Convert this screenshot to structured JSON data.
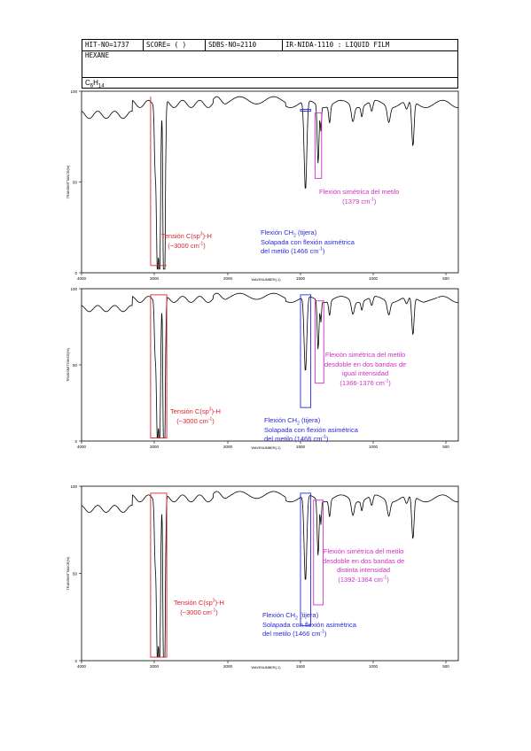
{
  "header": {
    "hit_no": "HIT-NO=1737",
    "score": "SCORE=  (  )",
    "sdbs_no": "SDBS-NO=2110",
    "ir_code": "IR-NIDA-1110 : LIQUID FILM",
    "compound": "HEXANE",
    "formula_main": "C",
    "formula_sub1": "6",
    "formula_mid": "H",
    "formula_sub2": "14"
  },
  "colors": {
    "red": "#e0202a",
    "blue": "#2a2ad8",
    "magenta": "#d030c8",
    "trace": "#000000"
  },
  "chart_data": [
    {
      "type": "line",
      "x_ticks": [
        "4000",
        "3000",
        "2000",
        "1500",
        "1000",
        "500"
      ],
      "x_tick_values": [
        4000,
        3000,
        2000,
        1500,
        1000,
        500
      ],
      "y_ticks": [
        "100",
        "50",
        "0"
      ],
      "ylim": [
        0,
        100
      ],
      "xlim": [
        4000,
        400
      ],
      "xlabel": "WAVENUMBER(-1)",
      "ylabel": "TRANSMITTANCE(%)",
      "annotations": {
        "red": {
          "line1": "Tensión C(sp",
          "sup": "3",
          "line1b": ")-H",
          "line2": "(~3000 cm",
          "line2sup": "-1",
          "line2b": ")"
        },
        "blue": {
          "line1": "Flexión CH",
          "sub": "2",
          "line1b": " (tijera)",
          "line2": "Solapada con flexión asimétrica",
          "line3": "del metilo (1466 cm",
          "line3sup": "-1",
          "line3b": ")"
        },
        "magenta": {
          "line1": "Flexión simétrica del metilo",
          "line2": "(1379 cm",
          "line2sup": "-1",
          "line2b": ")"
        }
      }
    },
    {
      "type": "line",
      "x_ticks": [
        "4000",
        "3000",
        "2000",
        "1500",
        "1000",
        "500"
      ],
      "x_tick_values": [
        4000,
        3000,
        2000,
        1500,
        1000,
        500
      ],
      "y_ticks": [
        "100",
        "50",
        "0"
      ],
      "ylim": [
        0,
        100
      ],
      "xlim": [
        4000,
        400
      ],
      "xlabel": "WAVENUMBER(-1)",
      "ylabel": "TRANSMITTANCE(%)",
      "annotations": {
        "red": {
          "line1": "Tensión C(sp",
          "sup": "3",
          "line1b": ")-H",
          "line2": "(~3000 cm",
          "line2sup": "-1",
          "line2b": ")"
        },
        "blue": {
          "line1": "Flexión CH",
          "sub": "2",
          "line1b": " (tijera)",
          "line2": "Solapada con flexión asimétrica",
          "line3": "del metilo (1466 cm",
          "line3sup": "-1",
          "line3b": ")"
        },
        "magenta": {
          "line1": "Flexión simétrica del metilo",
          "line2": "desdoble en dos bandas de",
          "line3": "igual intensidad",
          "line4": "(1366-1376 cm",
          "line4sup": "-1",
          "line4b": ")"
        }
      }
    },
    {
      "type": "line",
      "x_ticks": [
        "4000",
        "3000",
        "2000",
        "1500",
        "1000",
        "500"
      ],
      "x_tick_values": [
        4000,
        3000,
        2000,
        1500,
        1000,
        500
      ],
      "y_ticks": [
        "100",
        "50",
        "0"
      ],
      "ylim": [
        0,
        100
      ],
      "xlim": [
        4000,
        400
      ],
      "xlabel": "WAVENUMBER(-1)",
      "ylabel": "TRANSMITTANCE(%)",
      "annotations": {
        "red": {
          "line1": "Tensión C(sp",
          "sup": "3",
          "line1b": ")-H",
          "line2": "(~3000 cm",
          "line2sup": "-1",
          "line2b": ")"
        },
        "blue": {
          "line1": "Flexión CH",
          "sub": "2",
          "line1b": " (tijera)",
          "line2": "Solapada con flexión asimétrica",
          "line3": "del metilo (1466 cm",
          "line3sup": "-1",
          "line3b": ")"
        },
        "magenta": {
          "line1": "Flexión simétrica del metilo",
          "line2": "desdoble en dos bandas de",
          "line3": "distinta intensidad",
          "line4": "(1392-1364 cm",
          "line4sup": "-1",
          "line4b": ")"
        }
      }
    }
  ]
}
